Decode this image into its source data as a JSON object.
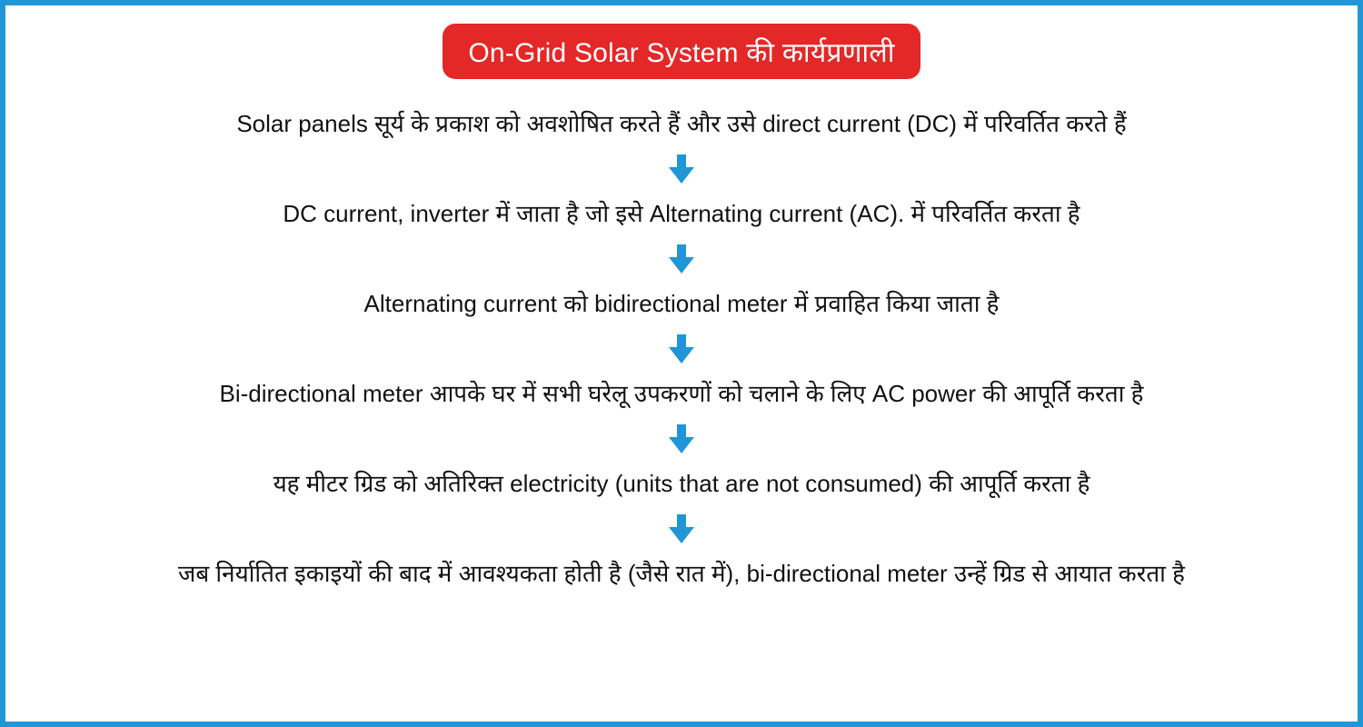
{
  "colors": {
    "border": "#2196d6",
    "title_bg": "#e42727",
    "title_fg": "#ffffff",
    "text": "#111111",
    "arrow": "#2196d6",
    "background": "#ffffff"
  },
  "title": "On-Grid Solar System की कार्यप्रणाली",
  "title_fontsize": 30,
  "step_fontsize": 26,
  "arrow": {
    "width": 28,
    "height": 32
  },
  "steps": [
    "Solar panels सूर्य के प्रकाश को अवशोषित करते हैं और उसे direct current (DC) में परिवर्तित करते हैं",
    "DC current, inverter में जाता है जो इसे Alternating current (AC). में परिवर्तित करता है",
    "Alternating current को bidirectional meter में प्रवाहित किया जाता है",
    "Bi-directional meter आपके घर में सभी घरेलू उपकरणों को चलाने के लिए AC power की आपूर्ति करता है",
    "यह मीटर ग्रिड को अतिरिक्त electricity (units that are not consumed) की आपूर्ति करता है",
    "जब निर्यातित इकाइयों की बाद में आवश्यकता होती है (जैसे रात में), bi-directional meter उन्हें ग्रिड से आयात करता है"
  ]
}
